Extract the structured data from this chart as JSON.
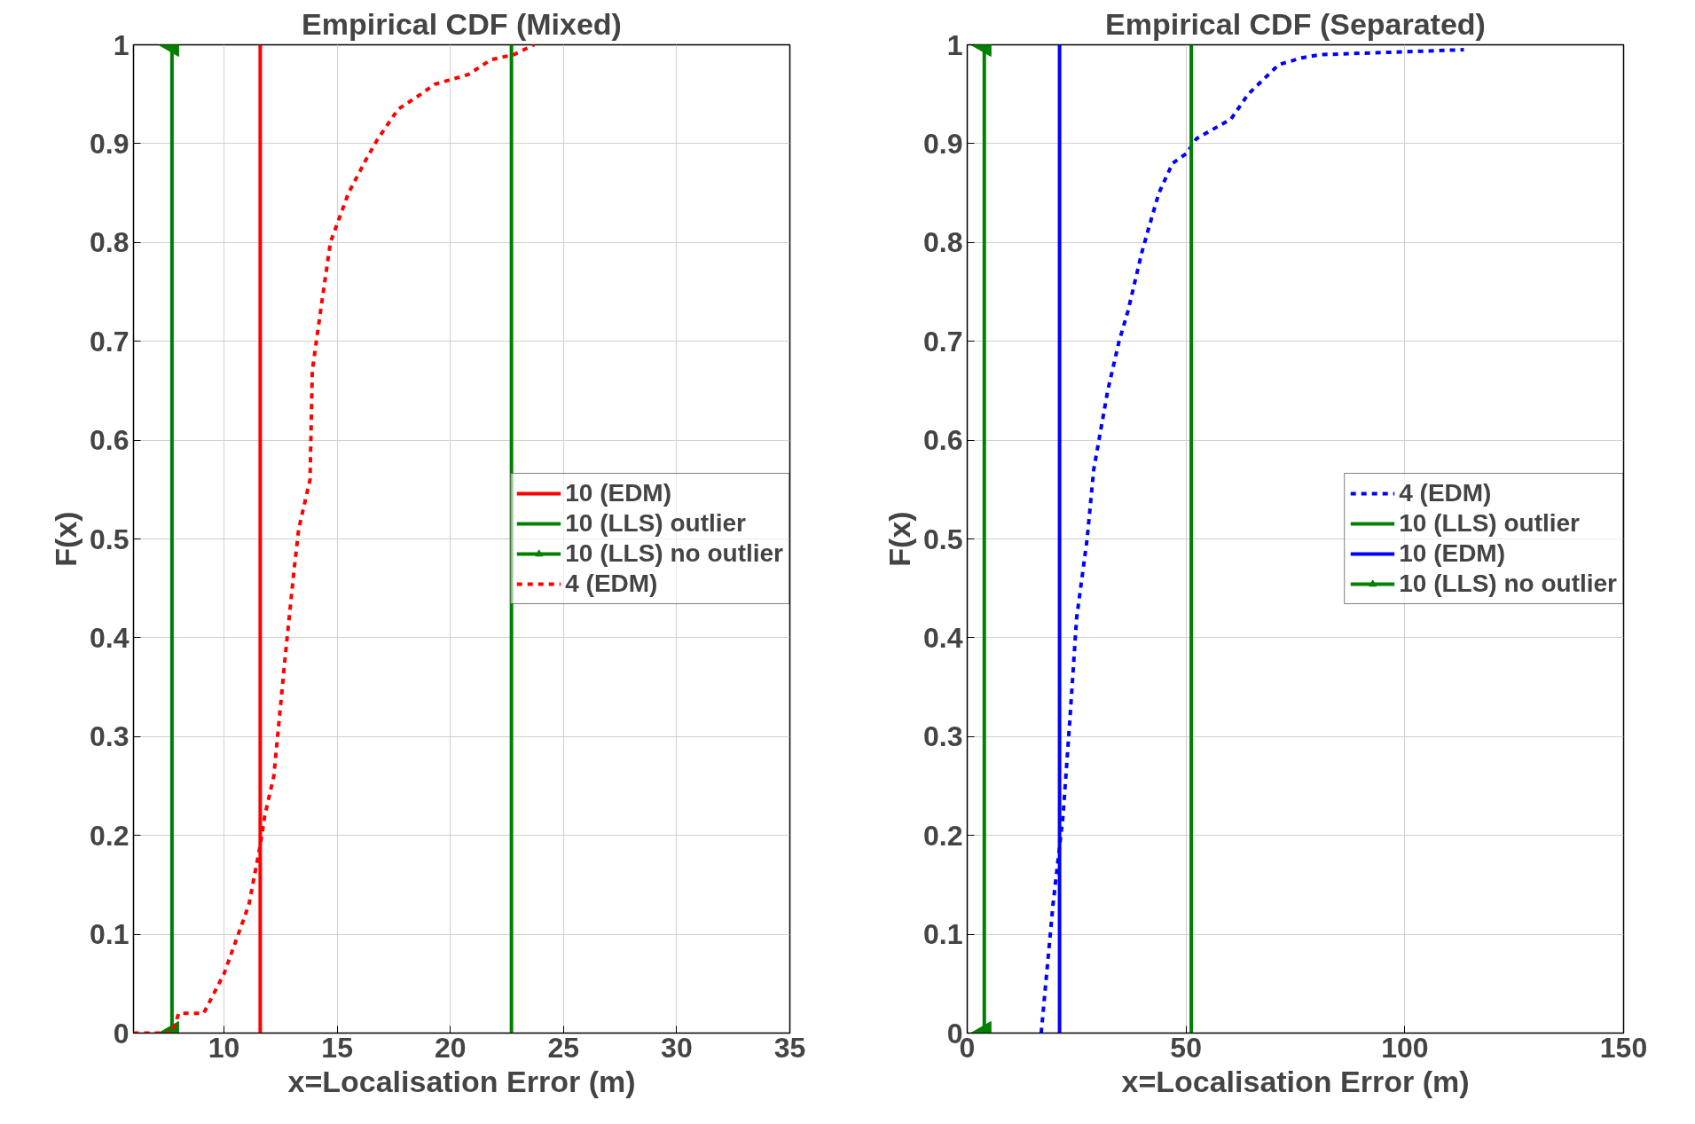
{
  "chart_data": [
    {
      "type": "line",
      "title": "Empirical CDF (Mixed)",
      "xlabel": "x=Localisation Error (m)",
      "ylabel": "F(x)",
      "xlim": [
        6,
        35
      ],
      "ylim": [
        0,
        1
      ],
      "xticks": [
        10,
        15,
        20,
        25,
        30,
        35
      ],
      "yticks": [
        0,
        0.1,
        0.2,
        0.3,
        0.4,
        0.5,
        0.6,
        0.7,
        0.8,
        0.9,
        1
      ],
      "grid": true,
      "legend": "right",
      "series": [
        {
          "name": "10 (EDM)",
          "color": "#ff0000",
          "x": [
            11.6,
            11.6
          ],
          "values": [
            0,
            1
          ]
        },
        {
          "name": "10 (LLS) outlier",
          "color": "#008000",
          "x": [
            22.7,
            22.7
          ],
          "values": [
            0,
            1
          ]
        },
        {
          "name": "10 (LLS) no outlier",
          "color": "#008000",
          "marker": "triangle",
          "x": [
            7.7,
            7.7
          ],
          "values": [
            0,
            1
          ]
        },
        {
          "name": "4 (EDM)",
          "color": "#ff0000",
          "line_style": "dashed",
          "x": [
            6,
            7.7,
            8,
            9.1,
            10,
            11.1,
            11.6,
            11.8,
            12.2,
            12.7,
            13.1,
            13.3,
            13.8,
            13.9,
            14.2,
            14.7,
            15.5,
            16.3,
            16.8,
            17.7,
            18.7,
            19.3,
            20.8,
            21.8,
            22.8,
            23.7
          ],
          "values": [
            0,
            0,
            0.02,
            0.02,
            0.06,
            0.13,
            0.19,
            0.22,
            0.26,
            0.38,
            0.47,
            0.51,
            0.56,
            0.67,
            0.72,
            0.8,
            0.85,
            0.885,
            0.905,
            0.935,
            0.95,
            0.96,
            0.97,
            0.985,
            0.99,
            1
          ]
        }
      ]
    },
    {
      "type": "line",
      "title": "Empirical CDF (Separated)",
      "xlabel": "x=Localisation Error (m)",
      "ylabel": "F(x)",
      "xlim": [
        0,
        150
      ],
      "ylim": [
        0,
        1
      ],
      "xticks": [
        0,
        50,
        100,
        150
      ],
      "yticks": [
        0,
        0.1,
        0.2,
        0.3,
        0.4,
        0.5,
        0.6,
        0.7,
        0.8,
        0.9,
        1
      ],
      "grid": true,
      "legend": "right",
      "series": [
        {
          "name": "4 (EDM)",
          "color": "#0000ff",
          "line_style": "dashed",
          "x": [
            16.9,
            19.6,
            21.9,
            23.5,
            25,
            27.4,
            28.9,
            30.5,
            32.1,
            34.7,
            36.7,
            39.9,
            41.5,
            43.8,
            46.9,
            50.1,
            52.4,
            60.3,
            64.2,
            71.2,
            76.7,
            80.6,
            113.5
          ],
          "values": [
            0,
            0.13,
            0.22,
            0.32,
            0.42,
            0.5,
            0.57,
            0.61,
            0.65,
            0.7,
            0.73,
            0.79,
            0.815,
            0.85,
            0.88,
            0.89,
            0.905,
            0.925,
            0.95,
            0.98,
            0.987,
            0.99,
            0.995
          ]
        },
        {
          "name": "10 (LLS) outlier",
          "color": "#008000",
          "x": [
            51.2,
            51.2
          ],
          "values": [
            0,
            1
          ]
        },
        {
          "name": "10 (EDM)",
          "color": "#0000ff",
          "x": [
            21.1,
            21.1
          ],
          "values": [
            0,
            1
          ]
        },
        {
          "name": "10 (LLS) no outlier",
          "color": "#008000",
          "marker": "triangle",
          "x": [
            3.9,
            3.9
          ],
          "values": [
            0,
            1
          ]
        }
      ]
    }
  ]
}
